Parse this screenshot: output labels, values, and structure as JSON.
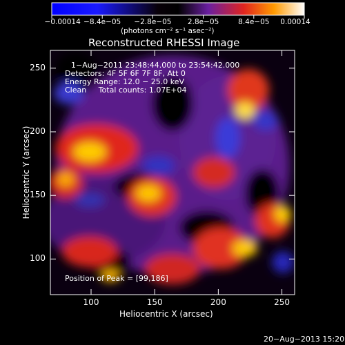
{
  "chart_data": {
    "type": "heatmap",
    "title": "Reconstructed RHESSI Image",
    "xlabel": "Heliocentric X (arcsec)",
    "ylabel": "Heliocentric Y (arcsec)",
    "xlim": [
      68,
      260
    ],
    "ylim": [
      72,
      264
    ],
    "x_ticks": [
      100,
      150,
      200,
      250
    ],
    "y_ticks": [
      100,
      150,
      200,
      250
    ],
    "colorbar": {
      "ticks": [
        "−0.00014",
        "−8.4e−05",
        "−2.8e−05",
        "2.8e−05",
        "8.4e−05",
        "0.00014"
      ],
      "range": [
        -0.00014,
        0.00014
      ],
      "units": "(photons cm⁻² s⁻¹ asec⁻²)"
    },
    "annotations": [
      "1−Aug−2011 23:48:44.000 to 23:54:42.000",
      "Detectors: 4F 5F 6F 7F 8F, Att 0",
      "Energy Range: 12.0 − 25.0 keV",
      "Clean     Total counts: 1.07E+04"
    ],
    "peak_label": "Position of Peak = [99,186]",
    "peak_position": [
      99,
      186
    ],
    "grid": false,
    "colormap": [
      "#0000ff",
      "#000000",
      "#7a2a9a",
      "#e0241f",
      "#ffd700",
      "#ffffff"
    ]
  },
  "footer": {
    "timestamp": "20−Aug−2013 15:20"
  }
}
